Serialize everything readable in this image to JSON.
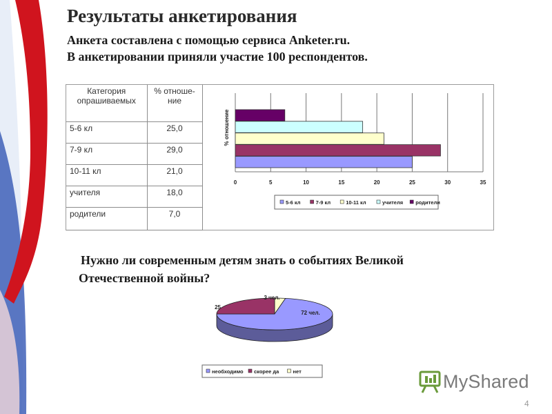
{
  "slide": {
    "title": "Результаты анкетирования",
    "line1": "Анкета составлена с помощью сервиса Anketer.ru.",
    "line2": "В анкетировании приняли участие 100 респондентов.",
    "question_line1": "Нужно ли современным детям знать о событиях Великой",
    "question_line2": "Отечественной войны?",
    "page_number": "4"
  },
  "table": {
    "header_category": "Категория опрашиваемых",
    "header_percent": "% отноше-ние",
    "rows": [
      {
        "category": "5-6 кл",
        "percent": "25,0"
      },
      {
        "category": "7-9 кл",
        "percent": "29,0"
      },
      {
        "category": "10-11 кл",
        "percent": "21,0"
      },
      {
        "category": "учителя",
        "percent": "18,0"
      },
      {
        "category": "родители",
        "percent": "7,0"
      }
    ]
  },
  "watermark": {
    "text": "MyShared",
    "icon": "presentation-icon"
  },
  "colors": {
    "s1": "#9999ff",
    "s2": "#993366",
    "s3": "#ffffcc",
    "s4": "#ccffff",
    "s5": "#660066"
  },
  "chart_data": [
    {
      "type": "bar",
      "orientation": "horizontal",
      "ylabel": "% отношение",
      "xlim": [
        0,
        35
      ],
      "xticks": [
        "0",
        "5",
        "10",
        "15",
        "20",
        "25",
        "30",
        "35"
      ],
      "grid": true,
      "legend_position": "bottom",
      "series": [
        {
          "name": "5-6 кл",
          "value": 25,
          "color": "#9999ff"
        },
        {
          "name": "7-9 кл",
          "value": 29,
          "color": "#993366"
        },
        {
          "name": "10-11 кл",
          "value": 21,
          "color": "#ffffcc"
        },
        {
          "name": "учителя",
          "value": 18,
          "color": "#ccffff"
        },
        {
          "name": "родители",
          "value": 7,
          "color": "#660066"
        }
      ]
    },
    {
      "type": "pie",
      "style": "3d",
      "legend_position": "bottom",
      "slices": [
        {
          "name": "необходимо",
          "value": 72,
          "label": "72 чел.",
          "color": "#9999ff"
        },
        {
          "name": "скорее да",
          "value": 25,
          "label": "25",
          "color": "#993366"
        },
        {
          "name": "нет",
          "value": 3,
          "label": "3 чел.",
          "color": "#ffffcc"
        }
      ]
    }
  ]
}
